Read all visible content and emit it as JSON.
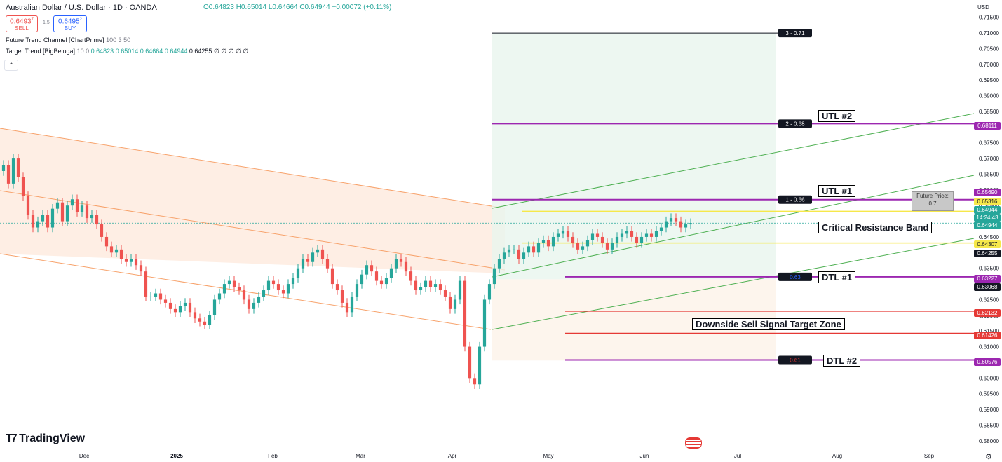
{
  "header": {
    "title": "Australian Dollar / U.S. Dollar · 1D · OANDA",
    "ohlc": "O0.64823 H0.65014 L0.64664 C0.64944 +0.00072 (+0.11%)",
    "sell_price": "0.6493",
    "sell_sup": "7",
    "sell_label": "SELL",
    "spread": "1.5",
    "buy_price": "0.6495",
    "buy_sup": "2",
    "buy_label": "BUY",
    "indicator1": "Future Trend Channel [ChartPrime]",
    "indicator1_params": "100 3 50",
    "indicator2": "Target Trend [BigBeluga]",
    "indicator2_params": "10 0",
    "indicator2_values": [
      "0.64823",
      "0.65014",
      "0.64664",
      "0.64944",
      "0.64255",
      "∅ ∅ ∅ ∅ ∅"
    ],
    "currency": "USD",
    "brand": "TradingView"
  },
  "colors": {
    "up": "#26a69a",
    "down": "#ef5350",
    "purple": "#9c27b0",
    "red": "#e53935",
    "yellow": "#f6e84a",
    "green_line": "#4caf50",
    "orange": "#f7a26b"
  },
  "annotations": {
    "utl2": "UTL #2",
    "utl1": "UTL #1",
    "crb": "Critical Resistance Band",
    "dtl1": "DTL #1",
    "dst": "Downside Sell Signal Target Zone",
    "dtl2": "DTL #2",
    "future_label": "Future Price:",
    "future_value": "0.7",
    "t3": "3 - 0.71",
    "t2": "2 - 0.68",
    "t1": "1 - 0.66",
    "d1": "0.63",
    "d2": "0.61"
  },
  "chart_data": {
    "type": "candlestick",
    "title": "Australian Dollar / U.S. Dollar · 1D · OANDA",
    "x_ticks": [
      "Dec",
      "2025",
      "Feb",
      "Mar",
      "Apr",
      "May",
      "Jun",
      "Jul",
      "Aug",
      "Sep"
    ],
    "y_ticks": [
      "0.71500",
      "0.71000",
      "0.70500",
      "0.70000",
      "0.69500",
      "0.69000",
      "0.68500",
      "0.68000",
      "0.67500",
      "0.67000",
      "0.66500",
      "0.66000",
      "0.65500",
      "0.65000",
      "0.64500",
      "0.64000",
      "0.63500",
      "0.63000",
      "0.62500",
      "0.62000",
      "0.61500",
      "0.61000",
      "0.60500",
      "0.60000",
      "0.59500",
      "0.59000",
      "0.58500",
      "0.58000"
    ],
    "ylim": [
      0.5775,
      0.7165
    ],
    "price_labels": [
      {
        "value": "0.68111",
        "color": "#9c27b0"
      },
      {
        "value": "0.65690",
        "color": "#9c27b0"
      },
      {
        "value": "0.65316",
        "color": "#f6e84a"
      },
      {
        "value": "0.64944",
        "color": "#26a69a"
      },
      {
        "value": "14:24:43",
        "color": "#26a69a"
      },
      {
        "value": "0.64944",
        "color": "#26a69a"
      },
      {
        "value": "0.64307",
        "color": "#f6e84a"
      },
      {
        "value": "0.64255",
        "color": "#131722"
      },
      {
        "value": "0.63227",
        "color": "#9c27b0"
      },
      {
        "value": "0.63068",
        "color": "#131722"
      },
      {
        "value": "0.62132",
        "color": "#e53935"
      },
      {
        "value": "0.61426",
        "color": "#e53935"
      },
      {
        "value": "0.60576",
        "color": "#9c27b0"
      }
    ],
    "levels": [
      {
        "name": "Target 3",
        "value": 0.71
      },
      {
        "name": "UTL #2",
        "value": 0.68111
      },
      {
        "name": "UTL #1",
        "value": 0.6569
      },
      {
        "name": "Resistance top",
        "value": 0.65316
      },
      {
        "name": "Resistance bottom",
        "value": 0.64307
      },
      {
        "name": "DTL #1",
        "value": 0.63227
      },
      {
        "name": "Downside zone top",
        "value": 0.62132
      },
      {
        "name": "Downside zone bottom",
        "value": 0.61426
      },
      {
        "name": "DTL #2",
        "value": 0.60576
      }
    ],
    "closes": [
      0.668,
      0.662,
      0.67,
      0.664,
      0.658,
      0.652,
      0.648,
      0.65,
      0.652,
      0.648,
      0.654,
      0.656,
      0.65,
      0.655,
      0.657,
      0.653,
      0.655,
      0.651,
      0.652,
      0.649,
      0.645,
      0.642,
      0.64,
      0.641,
      0.638,
      0.637,
      0.638,
      0.636,
      0.634,
      0.626,
      0.626,
      0.627,
      0.625,
      0.624,
      0.622,
      0.621,
      0.623,
      0.624,
      0.621,
      0.619,
      0.618,
      0.617,
      0.62,
      0.625,
      0.627,
      0.63,
      0.631,
      0.629,
      0.628,
      0.625,
      0.622,
      0.624,
      0.626,
      0.628,
      0.631,
      0.63,
      0.628,
      0.627,
      0.63,
      0.632,
      0.635,
      0.638,
      0.637,
      0.64,
      0.641,
      0.638,
      0.635,
      0.63,
      0.628,
      0.624,
      0.621,
      0.626,
      0.63,
      0.633,
      0.636,
      0.634,
      0.631,
      0.63,
      0.632,
      0.635,
      0.638,
      0.637,
      0.634,
      0.631,
      0.628,
      0.629,
      0.631,
      0.629,
      0.63,
      0.628,
      0.626,
      0.622,
      0.625,
      0.631,
      0.61,
      0.6,
      0.598,
      0.61,
      0.625,
      0.63,
      0.635,
      0.638,
      0.64,
      0.641,
      0.641,
      0.638,
      0.64,
      0.642,
      0.64,
      0.643,
      0.644,
      0.642,
      0.645,
      0.646,
      0.647,
      0.645,
      0.643,
      0.641,
      0.642,
      0.644,
      0.646,
      0.645,
      0.643,
      0.641,
      0.643,
      0.645,
      0.646,
      0.647,
      0.645,
      0.643,
      0.645,
      0.646,
      0.645,
      0.647,
      0.648,
      0.65,
      0.651,
      0.65,
      0.648,
      0.649,
      0.6494
    ]
  }
}
